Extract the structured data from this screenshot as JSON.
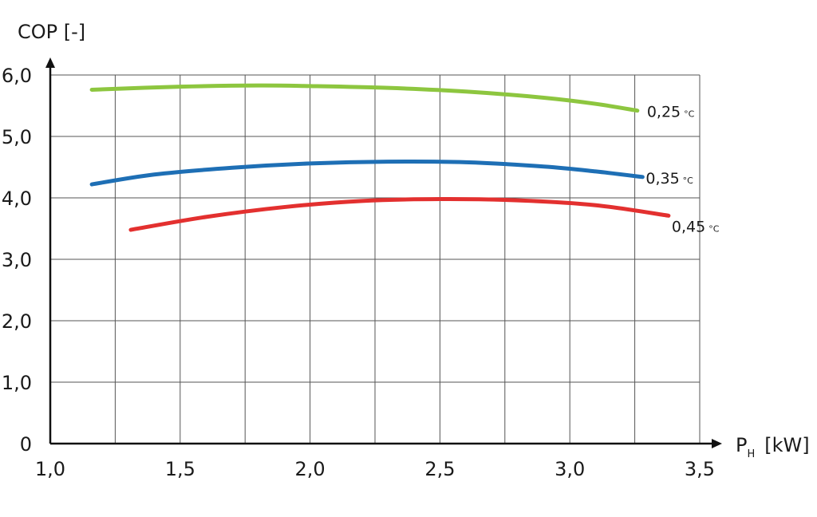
{
  "chart_data": {
    "type": "line",
    "ylabel": "COP [-]",
    "xlabel_main": "P",
    "xlabel_sub": "H",
    "xlabel_unit": "[kW]",
    "xlim": [
      1.0,
      3.5
    ],
    "ylim": [
      0,
      6.0
    ],
    "x_ticks": [
      "1,0",
      "1,5",
      "2,0",
      "2,5",
      "3,0",
      "3,5"
    ],
    "x_tick_values": [
      1.0,
      1.5,
      2.0,
      2.5,
      3.0,
      3.5
    ],
    "y_ticks": [
      "0",
      "1,0",
      "2,0",
      "3,0",
      "4,0",
      "5,0",
      "6,0"
    ],
    "y_tick_values": [
      0,
      1,
      2,
      3,
      4,
      5,
      6
    ],
    "x_grid_values": [
      1.0,
      1.25,
      1.5,
      1.75,
      2.0,
      2.25,
      2.5,
      2.75,
      3.0,
      3.25,
      3.5
    ],
    "grid": true,
    "series": [
      {
        "name": "0,25",
        "unit": "°C",
        "color": "#8dc63f",
        "x": [
          1.16,
          1.5,
          1.8,
          2.0,
          2.3,
          2.6,
          2.9,
          3.1,
          3.26
        ],
        "y": [
          5.76,
          5.81,
          5.83,
          5.82,
          5.79,
          5.73,
          5.63,
          5.53,
          5.42
        ]
      },
      {
        "name": "0,35",
        "unit": "°C",
        "color": "#1e6fb5",
        "x": [
          1.16,
          1.4,
          1.7,
          2.0,
          2.3,
          2.6,
          2.9,
          3.1,
          3.28
        ],
        "y": [
          4.22,
          4.38,
          4.49,
          4.56,
          4.59,
          4.58,
          4.51,
          4.43,
          4.34
        ]
      },
      {
        "name": "0,45",
        "unit": "°C",
        "color": "#e3302f",
        "x": [
          1.31,
          1.6,
          1.9,
          2.2,
          2.5,
          2.8,
          3.1,
          3.38
        ],
        "y": [
          3.48,
          3.69,
          3.85,
          3.95,
          3.98,
          3.96,
          3.88,
          3.71
        ]
      }
    ]
  }
}
